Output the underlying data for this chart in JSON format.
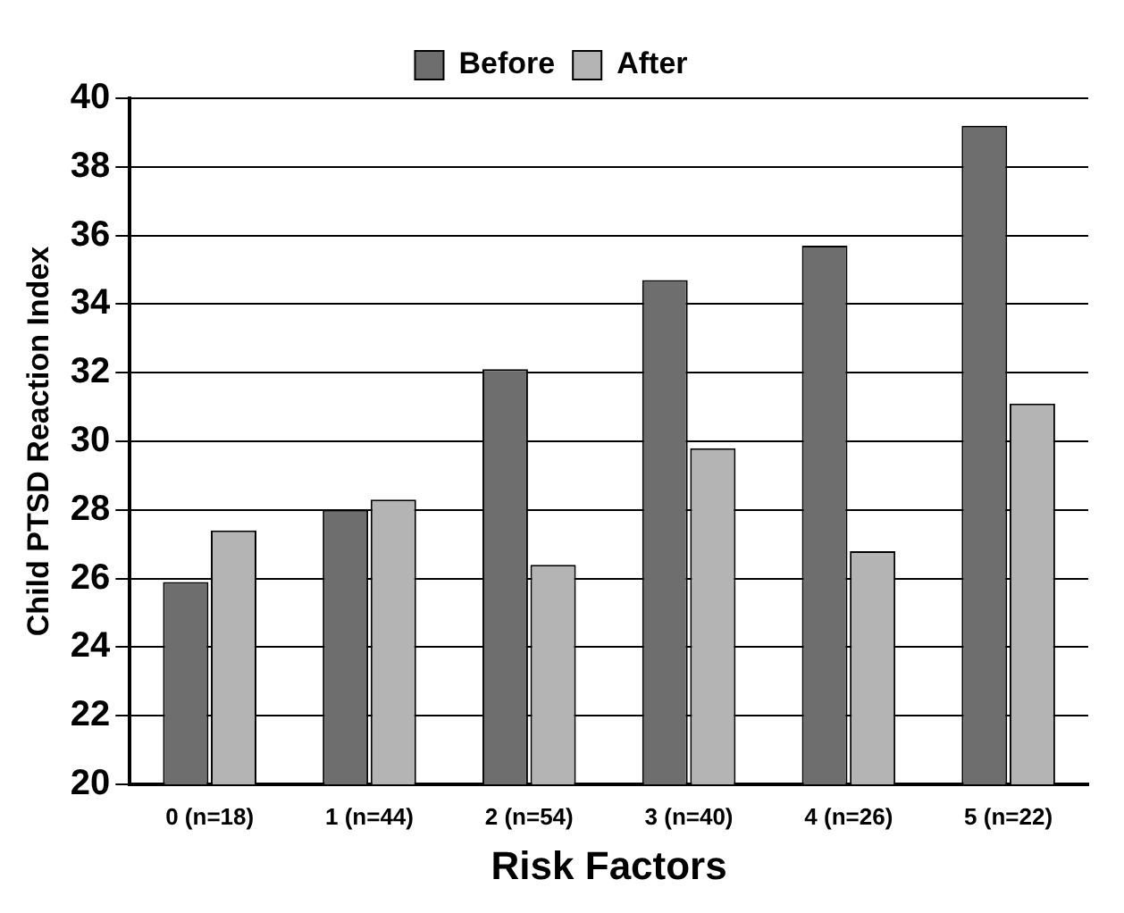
{
  "chart_data": {
    "type": "bar",
    "xlabel": "Risk Factors",
    "ylabel": "Child PTSD Reaction Index",
    "categories": [
      "0 (n=18)",
      "1 (n=44)",
      "2 (n=54)",
      "3 (n=40)",
      "4 (n=26)",
      "5 (n=22)"
    ],
    "series": [
      {
        "name": "Before",
        "color": "#6e6e6e",
        "values": [
          25.9,
          28.0,
          32.1,
          34.7,
          35.7,
          39.2
        ]
      },
      {
        "name": "After",
        "color": "#b4b4b4",
        "values": [
          27.4,
          28.3,
          26.4,
          29.8,
          26.8,
          31.1
        ]
      }
    ],
    "ylim": [
      20,
      40
    ],
    "yticks": [
      20,
      22,
      24,
      26,
      28,
      30,
      32,
      34,
      36,
      38,
      40
    ],
    "grid": "y",
    "legend": "top"
  }
}
